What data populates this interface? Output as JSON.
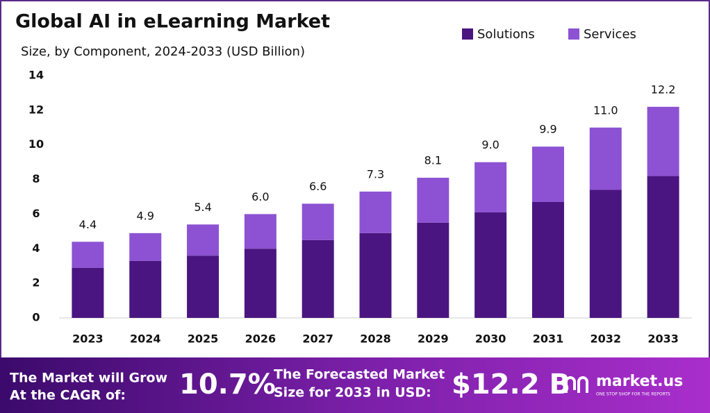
{
  "chart_data": {
    "type": "stacked_bar",
    "title": "Global AI in eLearning Market",
    "subtitle": "Size, by Component, 2024-2033 (USD Billion)",
    "categories": [
      "2023",
      "2024",
      "2025",
      "2026",
      "2027",
      "2028",
      "2029",
      "2030",
      "2031",
      "2032",
      "2033"
    ],
    "series": [
      {
        "name": "Solutions",
        "color": "#4a1580",
        "values": [
          2.9,
          3.3,
          3.6,
          4.0,
          4.5,
          4.9,
          5.5,
          6.1,
          6.7,
          7.4,
          8.2
        ]
      },
      {
        "name": "Services",
        "color": "#8c52d3",
        "values": [
          1.5,
          1.6,
          1.8,
          2.0,
          2.1,
          2.4,
          2.6,
          2.9,
          3.2,
          3.6,
          4.0
        ]
      }
    ],
    "totals": {
      "values": [
        4.4,
        4.9,
        5.4,
        6,
        6.6,
        7.3,
        8.1,
        9,
        9.9,
        11,
        12.2
      ],
      "value_labels": [
        "4.4",
        "4.9",
        "5.4",
        "6.0",
        "6.6",
        "7.3",
        "8.1",
        "9.0",
        "9.9",
        "11.0",
        "12.2"
      ]
    },
    "ylim": [
      0,
      14
    ],
    "yticks": [
      0,
      2,
      4,
      6,
      8,
      10,
      12,
      14
    ],
    "grid": false,
    "legend": "top-right"
  },
  "footer": {
    "cagr_text": [
      "The Market will Grow",
      "At the CAGR of:"
    ],
    "cagr": "10.7%",
    "forecast_text": [
      "The Forecasted Market",
      "Size for 2033 in USD:"
    ],
    "forecast": "$12.2 B",
    "brand": "market.us",
    "tagline": "ONE STOP SHOP FOR THE REPORTS"
  }
}
